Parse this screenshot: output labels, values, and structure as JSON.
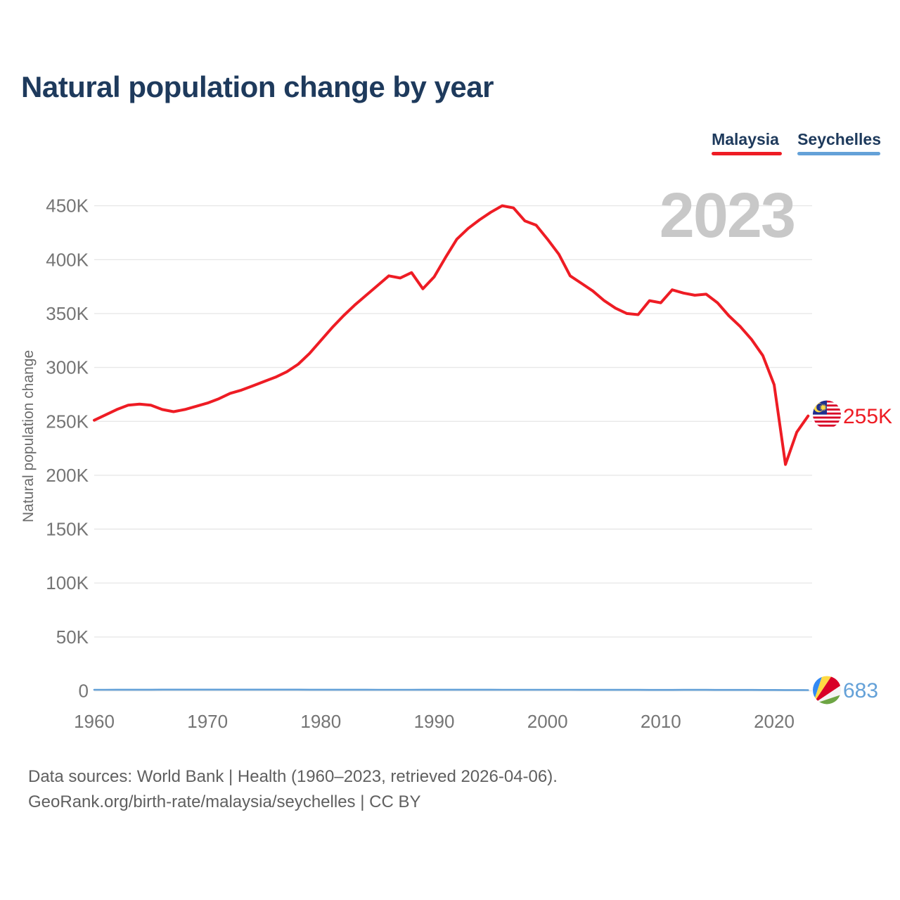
{
  "page": {
    "title": "Natural population change by year",
    "watermark_year": "2023"
  },
  "legend": {
    "items": [
      {
        "label": "Malaysia",
        "color": "#ee1c24"
      },
      {
        "label": "Seychelles",
        "color": "#64a1d8"
      }
    ]
  },
  "y_axis": {
    "title": "Natural population change",
    "ticks": [
      {
        "label": "450K",
        "value": 450000
      },
      {
        "label": "400K",
        "value": 400000
      },
      {
        "label": "350K",
        "value": 350000
      },
      {
        "label": "300K",
        "value": 300000
      },
      {
        "label": "250K",
        "value": 250000
      },
      {
        "label": "200K",
        "value": 200000
      },
      {
        "label": "150K",
        "value": 150000
      },
      {
        "label": "100K",
        "value": 100000
      },
      {
        "label": "50K",
        "value": 50000
      },
      {
        "label": "0",
        "value": 0
      }
    ]
  },
  "x_axis": {
    "ticks": [
      {
        "label": "1960",
        "year": 1960
      },
      {
        "label": "1970",
        "year": 1970
      },
      {
        "label": "1980",
        "year": 1980
      },
      {
        "label": "1990",
        "year": 1990
      },
      {
        "label": "2000",
        "year": 2000
      },
      {
        "label": "2010",
        "year": 2010
      },
      {
        "label": "2020",
        "year": 2020
      }
    ]
  },
  "series_end_labels": {
    "malaysia": {
      "text": "255K",
      "flag": "malaysia-flag"
    },
    "seychelles": {
      "text": "683",
      "flag": "seychelles-flag"
    }
  },
  "footer": {
    "line1": "Data sources: World Bank | Health (1960–2023, retrieved 2026-04-06).",
    "line2": "GeoRank.org/birth-rate/malaysia/seychelles | CC BY"
  },
  "colors": {
    "heading": "#1e3a5c",
    "malaysia_red": "#ee1c24",
    "seychelles_blue": "#64a1d8",
    "tick_text": "#757575",
    "axis_title_text": "#6b6b6b",
    "footer_text": "#5f5f5f",
    "gridline": "#e8e8e8",
    "watermark": "#c8c8c8"
  },
  "chart_data": {
    "type": "line",
    "title": "Natural population change by year",
    "xlabel": "",
    "ylabel": "Natural population change",
    "ylim": [
      0,
      462000
    ],
    "grid": "horizontal",
    "legend_position": "top-right",
    "x": [
      1960,
      1961,
      1962,
      1963,
      1964,
      1965,
      1966,
      1967,
      1968,
      1969,
      1970,
      1971,
      1972,
      1973,
      1974,
      1975,
      1976,
      1977,
      1978,
      1979,
      1980,
      1981,
      1982,
      1983,
      1984,
      1985,
      1986,
      1987,
      1988,
      1989,
      1990,
      1991,
      1992,
      1993,
      1994,
      1995,
      1996,
      1997,
      1998,
      1999,
      2000,
      2001,
      2002,
      2003,
      2004,
      2005,
      2006,
      2007,
      2008,
      2009,
      2010,
      2011,
      2012,
      2013,
      2014,
      2015,
      2016,
      2017,
      2018,
      2019,
      2020,
      2021,
      2022,
      2023
    ],
    "series": [
      {
        "name": "Malaysia",
        "color": "#ee1c24",
        "values": [
          251000,
          256000,
          261000,
          265000,
          266000,
          265000,
          261000,
          259000,
          261000,
          264000,
          267000,
          271000,
          276000,
          279000,
          283000,
          287000,
          291000,
          296000,
          303000,
          313000,
          325000,
          337000,
          348000,
          358000,
          367000,
          376000,
          385000,
          383000,
          388000,
          373000,
          384000,
          402000,
          419000,
          429000,
          437000,
          444000,
          450000,
          448000,
          436000,
          432000,
          419000,
          405000,
          385000,
          378000,
          371000,
          362000,
          355000,
          350000,
          349000,
          362000,
          360000,
          372000,
          369000,
          367000,
          368000,
          360000,
          348000,
          338000,
          326000,
          311000,
          284000,
          210000,
          240000,
          255000
        ]
      },
      {
        "name": "Seychelles",
        "color": "#64a1d8",
        "values": [
          990,
          1010,
          1030,
          1050,
          1060,
          1070,
          1080,
          1090,
          1100,
          1110,
          1120,
          1130,
          1140,
          1130,
          1120,
          1110,
          1100,
          1090,
          1080,
          1070,
          1060,
          1050,
          1040,
          1030,
          1020,
          1010,
          1000,
          1000,
          1010,
          1020,
          1030,
          1040,
          1050,
          1040,
          1030,
          1020,
          1010,
          1000,
          990,
          980,
          970,
          960,
          950,
          940,
          930,
          920,
          910,
          900,
          890,
          880,
          870,
          880,
          890,
          900,
          890,
          880,
          860,
          840,
          820,
          800,
          780,
          700,
          690,
          683
        ]
      }
    ]
  }
}
